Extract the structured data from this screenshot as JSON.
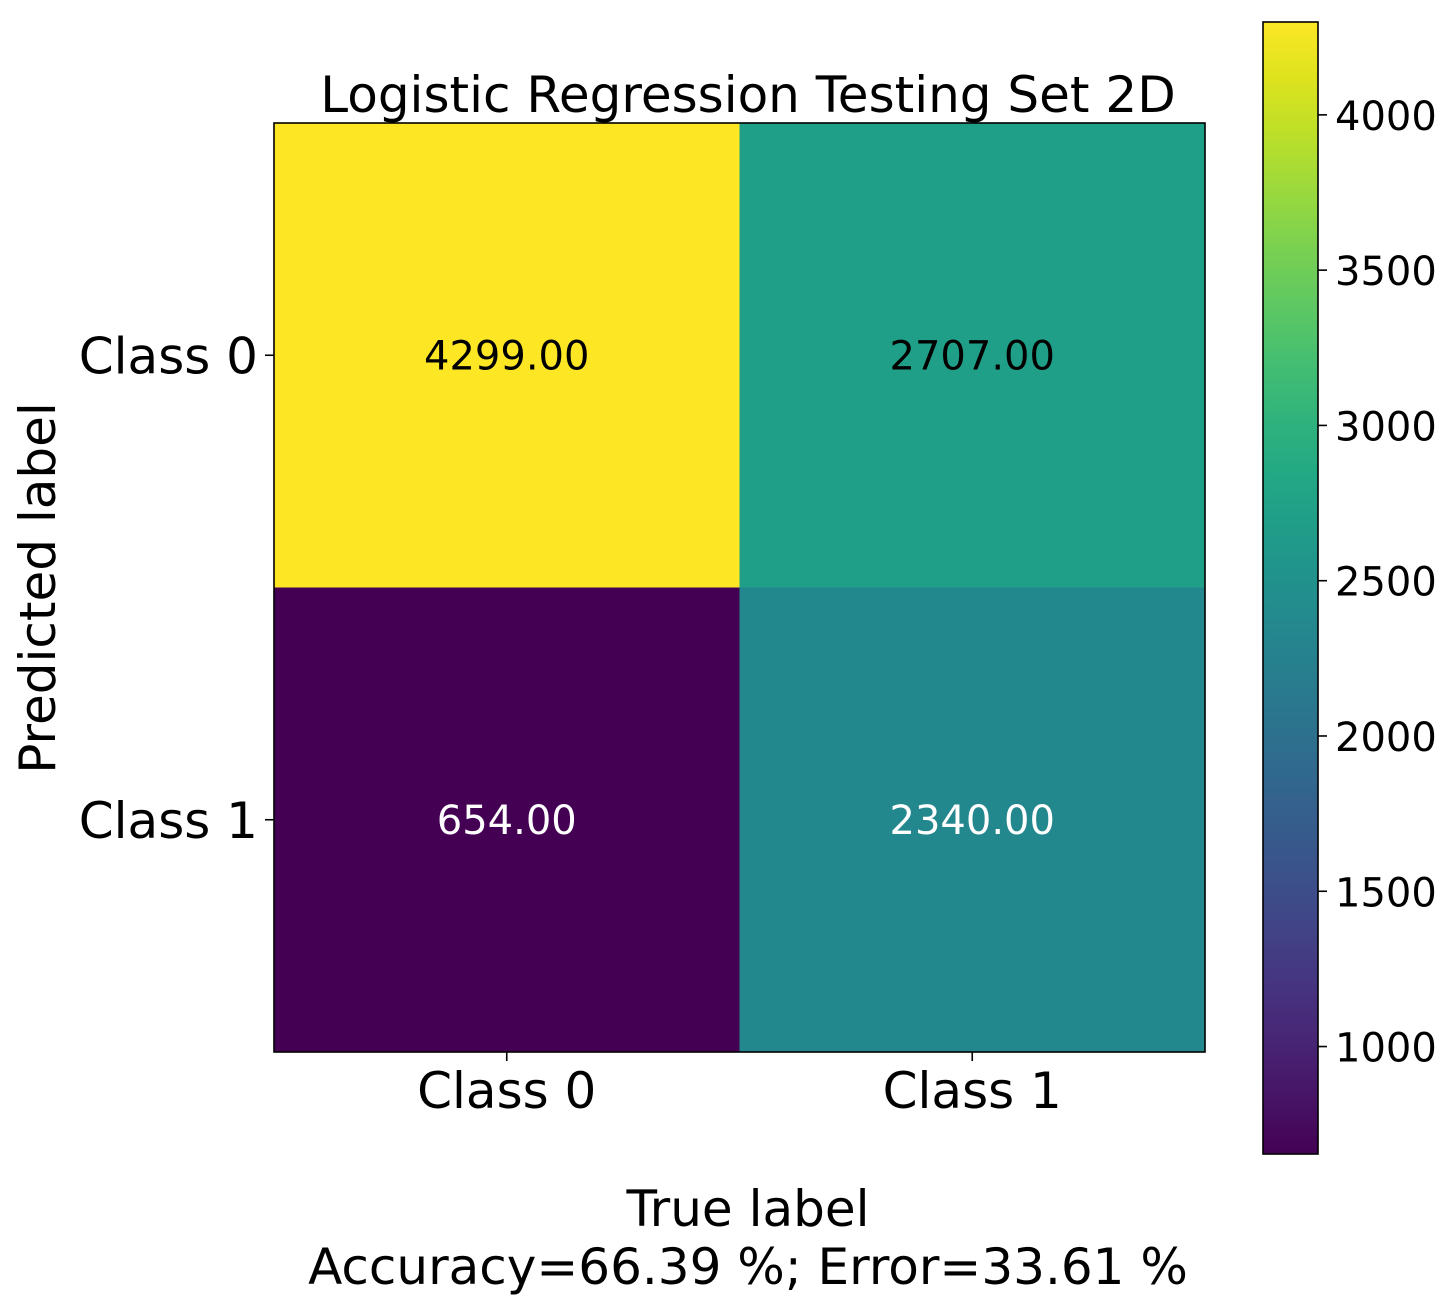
{
  "chart_data": {
    "type": "heatmap",
    "title": "Logistic Regression Testing Set 2D",
    "xlabel": "True label",
    "xlabel_note": "Accuracy=66.39 %; Error=33.61 %",
    "ylabel": "Predicted label",
    "x_categories": [
      "Class 0",
      "Class 1"
    ],
    "y_categories": [
      "Class 0",
      "Class 1"
    ],
    "values": [
      [
        4299,
        2707
      ],
      [
        654,
        2340
      ]
    ],
    "cell_labels": [
      [
        "4299.00",
        "2707.00"
      ],
      [
        "654.00",
        "2340.00"
      ]
    ],
    "colormap": "viridis",
    "color_range": [
      654,
      4299
    ],
    "colorbar_ticks": [
      1000,
      1500,
      2000,
      2500,
      3000,
      3500,
      4000
    ],
    "colorbar_tick_labels": [
      "1000",
      "1500",
      "2000",
      "2500",
      "3000",
      "3500",
      "4000"
    ],
    "colors": {
      "high_text": "#000000",
      "low_text": "#ffffff"
    }
  }
}
